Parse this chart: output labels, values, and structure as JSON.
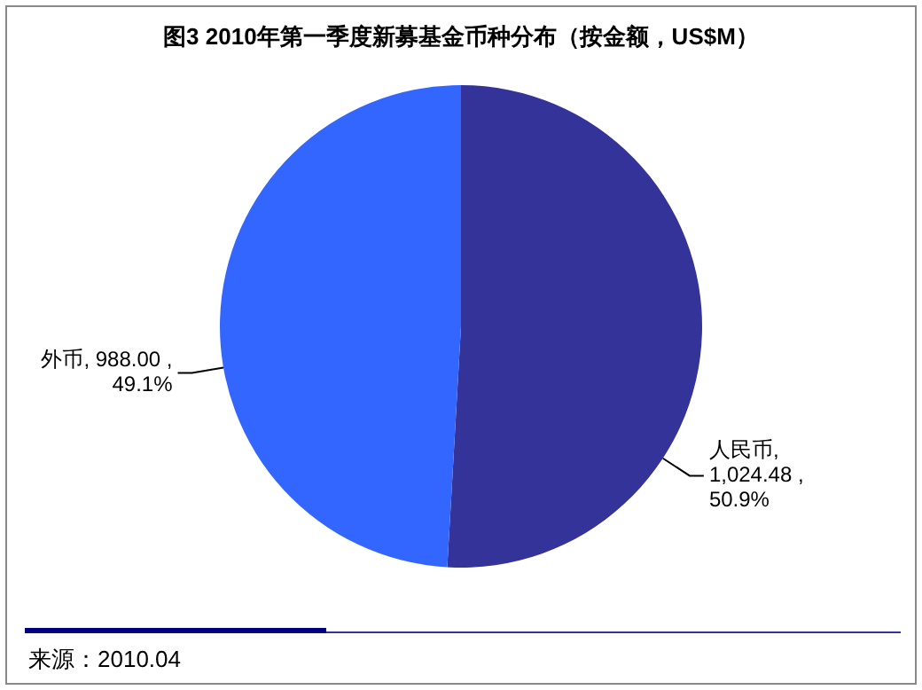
{
  "chart_data": {
    "type": "pie",
    "title": "图3  2010年第一季度新募基金币种分布（按金额，US$M）",
    "categories": [
      "人民币",
      "外币"
    ],
    "values": [
      1024.48,
      988.0
    ],
    "colors": [
      "#333399",
      "#3366ff"
    ],
    "value_labels": [
      ",\n1,024.48 ,\n50.9%",
      ", 988.00 ,\n49.1%"
    ],
    "legend": false,
    "annotations": [
      "来源：2010.04"
    ]
  }
}
